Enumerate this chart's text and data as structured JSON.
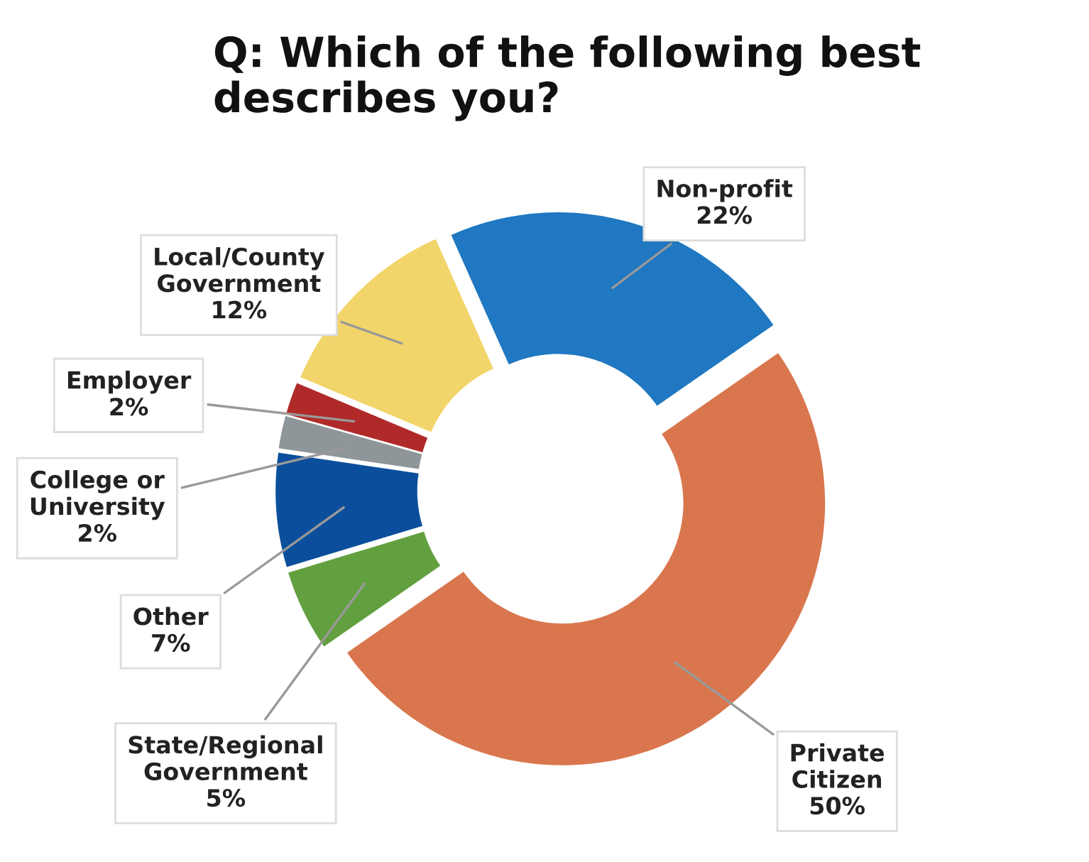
{
  "chart_data": {
    "type": "donut",
    "title": "Q: Which of the following best\ndescribes you?",
    "categories": [
      "Non-profit",
      "Private\nCitizen",
      "State/Regional\nGovernment",
      "Other",
      "College or\nUniversity",
      "Employer",
      "Local/County\nGovernment"
    ],
    "values": [
      22,
      50,
      5,
      7,
      2,
      2,
      12
    ],
    "colors": [
      "#1f78c1",
      "#d9764e",
      "#62a03f",
      "#0b4f9c",
      "#8f9699",
      "#b02a2a",
      "#f2d56a"
    ],
    "value_labels": [
      "22%",
      "50%",
      "5%",
      "7%",
      "2%",
      "2%",
      "12%"
    ],
    "legend": false
  }
}
